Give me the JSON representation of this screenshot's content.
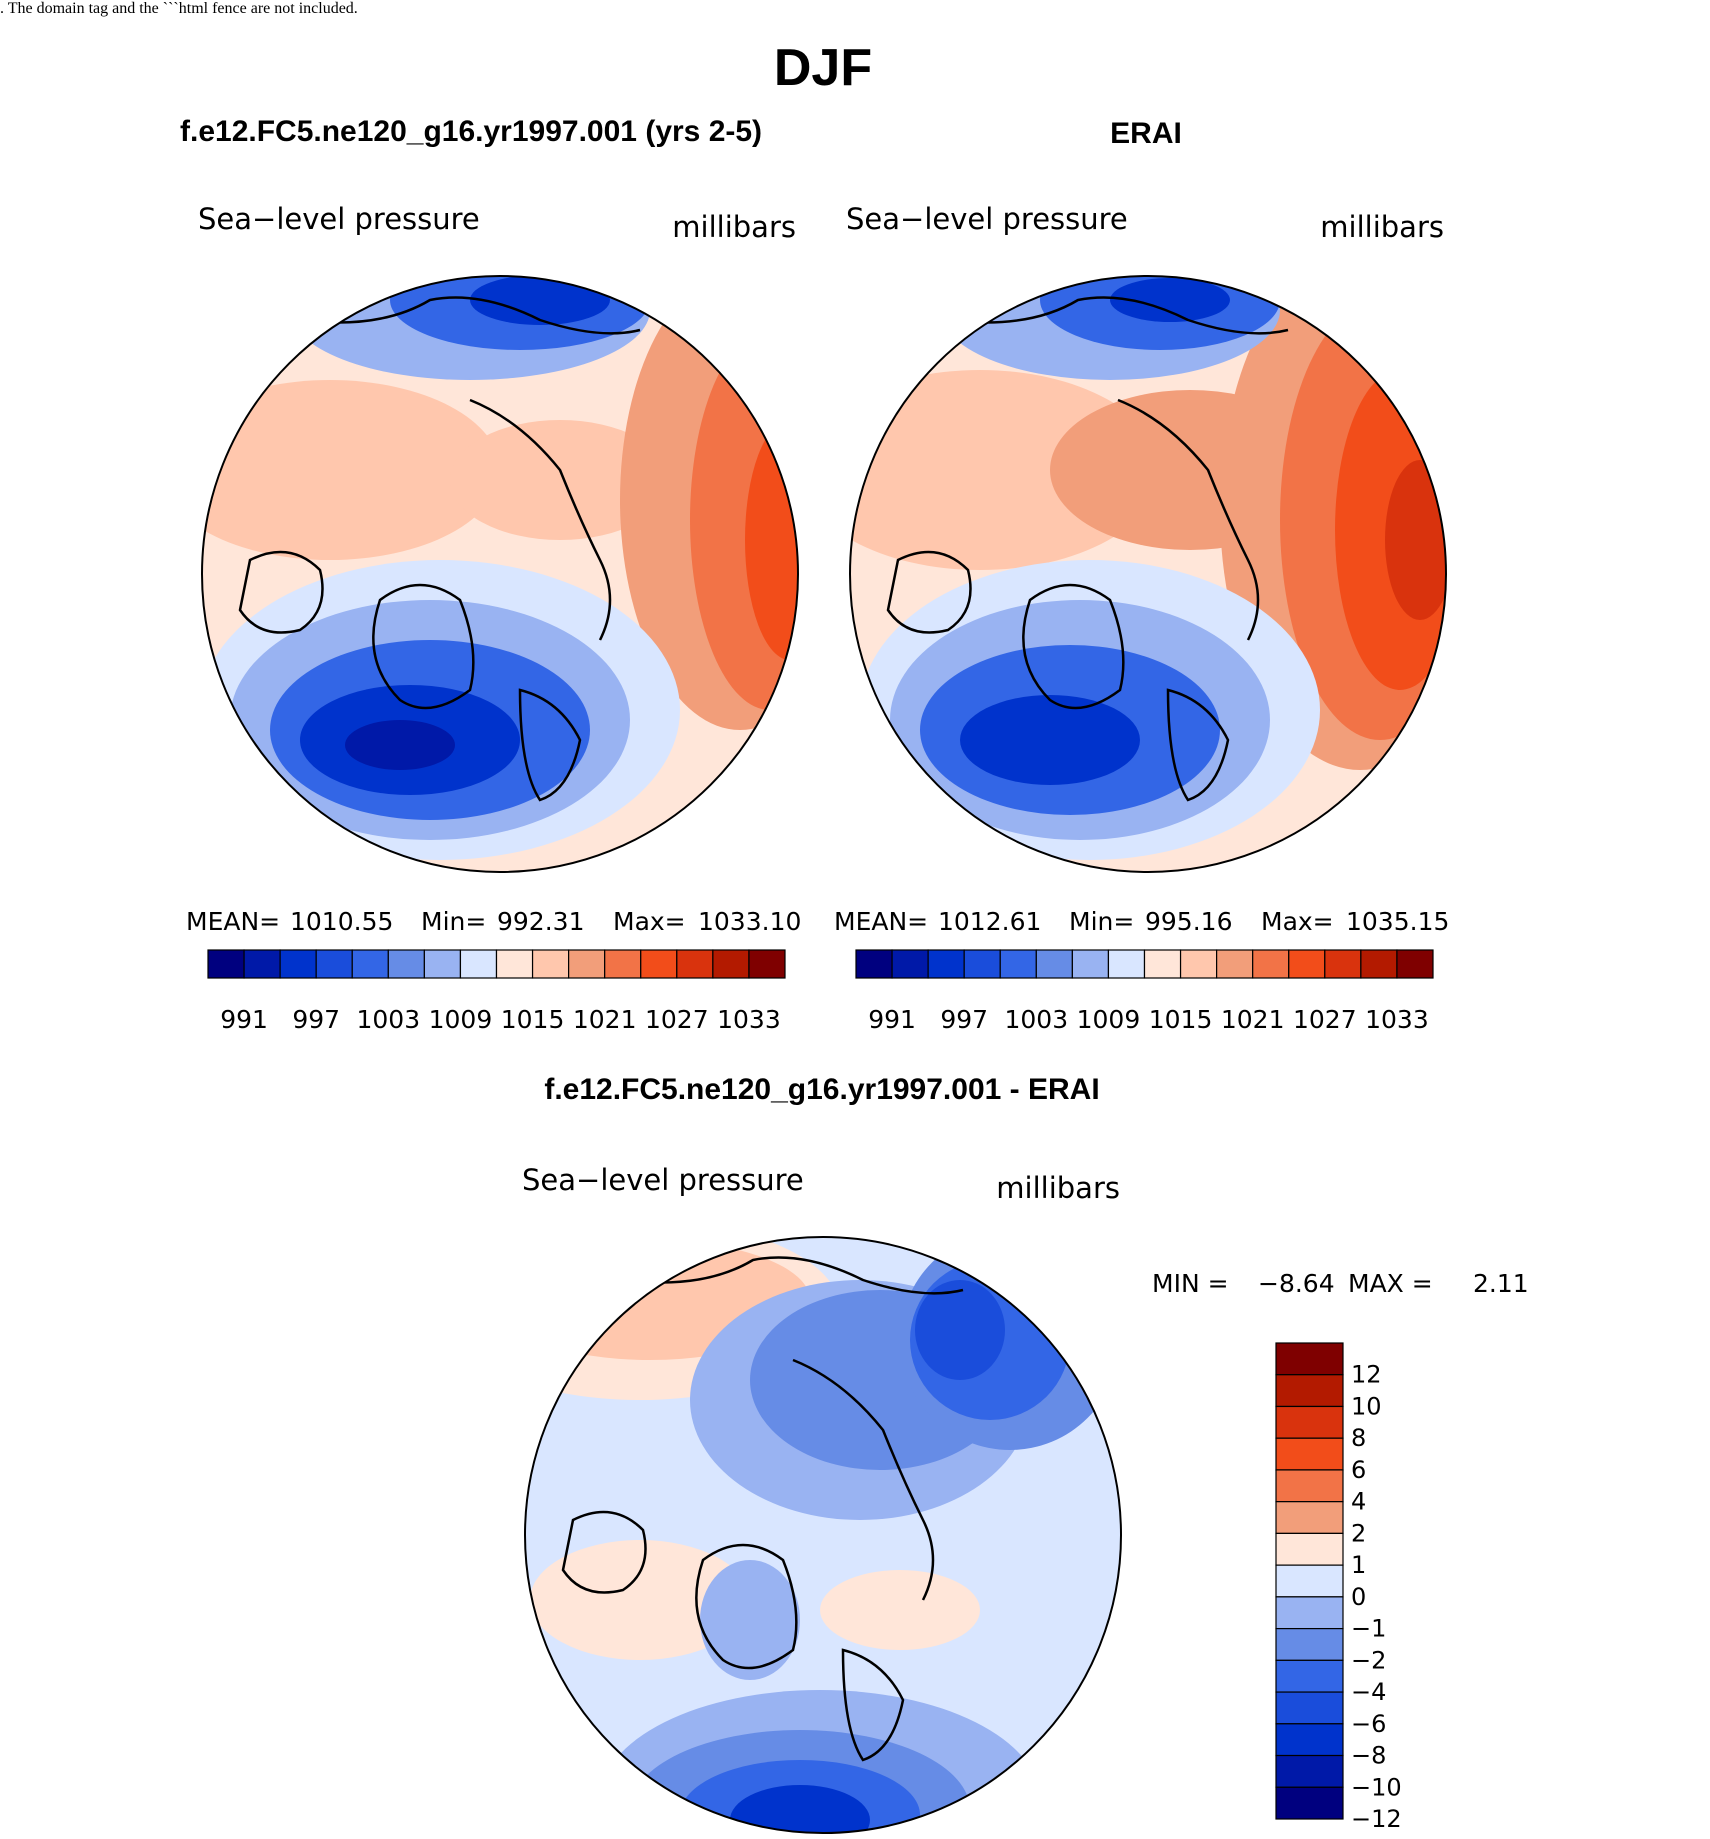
{
  "figure": {
    "season": "DJF",
    "colors": {
      "abs_scale": [
        "#00007f",
        "#0019a8",
        "#0033cc",
        "#1a4ddb",
        "#3366e6",
        "#668ce6",
        "#99b3f2",
        "#d9e6ff",
        "#ffe6d9",
        "#ffc7ad",
        "#f29e7a",
        "#f27347",
        "#f24d1a",
        "#d9330d",
        "#b31a00",
        "#7f0000"
      ],
      "diff_scale": [
        "#7f0000",
        "#b31a00",
        "#d9330d",
        "#f24d1a",
        "#f27347",
        "#f29e7a",
        "#ffe6d9",
        "#d9e6ff",
        "#99b3f2",
        "#668ce6",
        "#3366e6",
        "#1a4ddb",
        "#0033cc",
        "#0019a8",
        "#00007f"
      ]
    }
  },
  "panels": {
    "model": {
      "title": "f.e12.FC5.ne120_g16.yr1997.001 (yrs 2-5)",
      "variable": "Sea−level pressure",
      "units": "millibars",
      "stats": {
        "mean_label": "MEAN=",
        "mean": "1010.55",
        "min_label": "Min=",
        "min": "992.31",
        "max_label": "Max=",
        "max": "1033.10"
      }
    },
    "obs": {
      "title": "ERAI",
      "variable": "Sea−level pressure",
      "units": "millibars",
      "stats": {
        "mean_label": "MEAN=",
        "mean": "1012.61",
        "min_label": "Min=",
        "min": "995.16",
        "max_label": "Max=",
        "max": "1035.15"
      }
    },
    "diff": {
      "title": "f.e12.FC5.ne120_g16.yr1997.001 - ERAI",
      "variable": "Sea−level pressure",
      "units": "millibars",
      "stats": {
        "min_label": "MIN =",
        "min": "−8.64",
        "max_label": "MAX =",
        "max": "2.11"
      }
    }
  },
  "colorbars": {
    "abs_labels": [
      "991",
      "997",
      "1003",
      "1009",
      "1015",
      "1021",
      "1027",
      "1033"
    ],
    "diff_labels": [
      "12",
      "10",
      "8",
      "6",
      "4",
      "2",
      "1",
      "0",
      "−1",
      "−2",
      "−4",
      "−6",
      "−8",
      "−10",
      "−12"
    ]
  }
}
